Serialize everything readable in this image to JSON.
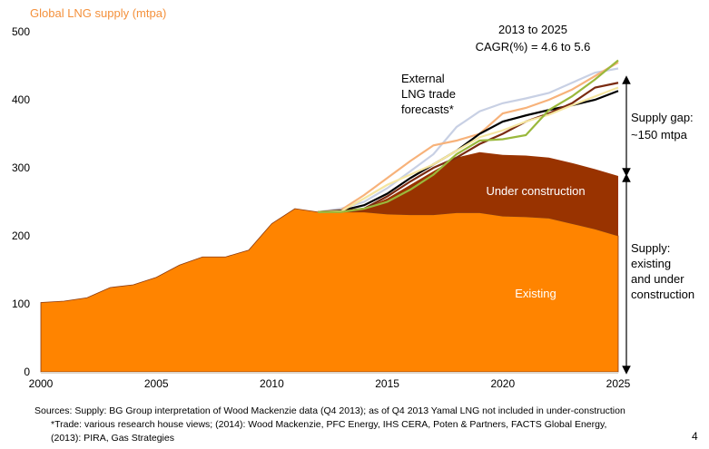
{
  "chart_data": {
    "type": "area",
    "title": "Global LNG supply (mtpa)",
    "title_color": "#F4913C",
    "xlim": [
      2000,
      2025
    ],
    "ylim": [
      0,
      500
    ],
    "xticks": [
      2000,
      2005,
      2010,
      2015,
      2020,
      2025
    ],
    "yticks": [
      0,
      100,
      200,
      300,
      400,
      500
    ],
    "grid": false,
    "areas": [
      {
        "name": "Existing",
        "color": "#FF8400",
        "x": [
          2000,
          2001,
          2002,
          2003,
          2004,
          2005,
          2006,
          2007,
          2008,
          2009,
          2010,
          2011,
          2012,
          2013,
          2014,
          2015,
          2016,
          2017,
          2018,
          2019,
          2020,
          2021,
          2022,
          2023,
          2024,
          2025
        ],
        "values": [
          102,
          104,
          109,
          124,
          128,
          139,
          157,
          169,
          169,
          179,
          218,
          240,
          235,
          235,
          235,
          232,
          231,
          231,
          234,
          234,
          229,
          228,
          226,
          218,
          210,
          200
        ]
      },
      {
        "name": "Under construction",
        "color": "#993300",
        "x": [
          2012,
          2013,
          2014,
          2015,
          2016,
          2017,
          2018,
          2019,
          2020,
          2021,
          2022,
          2023,
          2024,
          2025
        ],
        "values": [
          0,
          1,
          5,
          23,
          44,
          64,
          81,
          89,
          90,
          90,
          89,
          89,
          88,
          88
        ]
      }
    ],
    "forecast_lines": [
      {
        "color": "#C8D0E4",
        "values": [
          235,
          240,
          250,
          270,
          295,
          320,
          360,
          383,
          395,
          402,
          410,
          425,
          440,
          446
        ]
      },
      {
        "color": "#F7B27A",
        "values": [
          235,
          238,
          260,
          285,
          310,
          333,
          340,
          350,
          380,
          388,
          400,
          415,
          435,
          455
        ]
      },
      {
        "color": "#000000",
        "values": [
          235,
          237,
          245,
          262,
          285,
          305,
          325,
          350,
          368,
          377,
          385,
          392,
          400,
          413
        ]
      },
      {
        "color": "#7A2A10",
        "values": [
          235,
          236,
          240,
          258,
          280,
          300,
          315,
          335,
          350,
          368,
          380,
          395,
          418,
          425
        ]
      },
      {
        "color": "#F5E6A0",
        "values": [
          235,
          236,
          255,
          275,
          290,
          305,
          325,
          345,
          355,
          368,
          378,
          392,
          405,
          418
        ]
      },
      {
        "color": "#9AB83C",
        "values": [
          235,
          235,
          240,
          250,
          268,
          290,
          320,
          340,
          342,
          348,
          385,
          405,
          430,
          458
        ]
      }
    ],
    "forecast_x": [
      2012,
      2013,
      2014,
      2015,
      2016,
      2017,
      2018,
      2019,
      2020,
      2021,
      2022,
      2023,
      2024,
      2025
    ],
    "annotations": {
      "cagr_line1": "2013 to 2025",
      "cagr_line2": "CAGR(%) = 4.6 to 5.6",
      "forecasts_line1": "External",
      "forecasts_line2": "LNG trade",
      "forecasts_line3": "forecasts*",
      "gap_line1": "Supply gap:",
      "gap_line2": "~150 mtpa",
      "supply_line1": "Supply:",
      "supply_line2": "existing",
      "supply_line3": "and under",
      "supply_line4": "construction",
      "label_existing": "Existing",
      "label_under_construction": "Under construction"
    }
  },
  "footer": {
    "sources_line1": "Sources: Supply: BG Group interpretation of Wood Mackenzie data (Q4 2013); as of Q4 2013 Yamal LNG not included in under-construction",
    "sources_line2": "*Trade: various research house views; (2014): Wood Mackenzie, PFC Energy, IHS CERA, Poten & Partners, FACTS Global Energy,",
    "sources_line3": "(2013): PIRA, Gas Strategies",
    "page_number": "4"
  }
}
